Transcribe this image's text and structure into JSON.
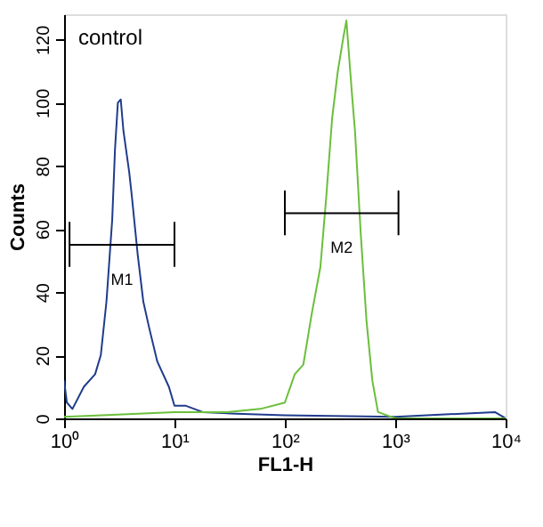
{
  "chart_data": {
    "type": "line",
    "xlabel": "FL1-H",
    "ylabel": "Counts",
    "log": "x",
    "grid": false,
    "marker": "none",
    "line_style": "solid",
    "xlim": [
      1,
      10000
    ],
    "xticks": [
      {
        "value": 1,
        "label": "10⁰"
      },
      {
        "value": 10,
        "label": "10¹"
      },
      {
        "value": 100,
        "label": "10²"
      },
      {
        "value": 1000,
        "label": "10³"
      },
      {
        "value": 10000,
        "label": "10⁴"
      }
    ],
    "ylim": [
      0,
      128
    ],
    "yticks": [
      0,
      20,
      40,
      60,
      80,
      100,
      120
    ],
    "series": [
      {
        "color": "#1f3c8c",
        "x": [
          1.0,
          1.06,
          1.19,
          1.51,
          1.91,
          2.15,
          2.42,
          2.73,
          2.89,
          3.07,
          3.26,
          3.45,
          3.89,
          4.12,
          4.64,
          5.22,
          5.87,
          6.99,
          8.9,
          10,
          12.7,
          18,
          36,
          100,
          1000,
          8000,
          10000
        ],
        "values": [
          12,
          5,
          3,
          10,
          14,
          20,
          37,
          63,
          85,
          100,
          101,
          91,
          78,
          70,
          52,
          37,
          29,
          18,
          10,
          4,
          4,
          2,
          1.5,
          1,
          0.5,
          2,
          0
        ]
      },
      {
        "color": "#6abf3a",
        "x": [
          1,
          2.2,
          10,
          30,
          60,
          100,
          123,
          147,
          175,
          210,
          237,
          268,
          302,
          340,
          361,
          407,
          432,
          486,
          549,
          620,
          698,
          1000,
          10000
        ],
        "values": [
          0.5,
          1,
          2,
          2,
          3,
          5,
          14,
          17,
          33,
          48,
          70,
          95,
          110,
          121,
          126,
          102,
          91,
          59,
          31,
          12,
          2,
          0,
          0
        ]
      },
      {
        "color": "#000000",
        "x": [
          1.12,
          1.12,
          1.12,
          10,
          10,
          10
        ],
        "values": [
          48,
          62,
          55,
          55,
          62,
          48
        ]
      },
      {
        "color": "#000000",
        "x": [
          100,
          100,
          100,
          1070,
          1070,
          1070
        ],
        "values": [
          58,
          72,
          65,
          65,
          72,
          58
        ]
      }
    ],
    "annotations": [
      "control",
      "M1",
      "M2"
    ]
  }
}
